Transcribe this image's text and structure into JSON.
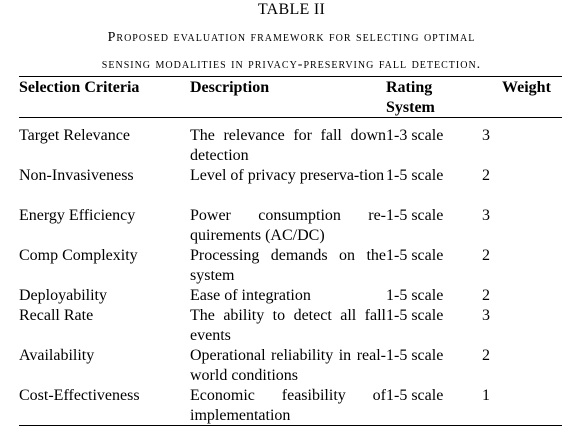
{
  "table_label": "TABLE II",
  "caption": {
    "line1": "Proposed evaluation framework for selecting optimal",
    "line2": "sensing modalities in privacy-preserving fall detection."
  },
  "headers": {
    "criteria": "Selection Criteria",
    "description": "Description",
    "rating": "Rating System",
    "weight": "Weight"
  },
  "rows": [
    {
      "criteria": "Target Relevance",
      "description": "The relevance for fall down detection",
      "rating": "1-3 scale",
      "weight": "3"
    },
    {
      "criteria": "Non-Invasiveness",
      "description": "Level of privacy preserva-tion",
      "rating": "1-5 scale",
      "weight": "2"
    },
    {
      "criteria": "Energy Efficiency",
      "description": "Power consumption re-quirements (AC/DC)",
      "rating": "1-5 scale",
      "weight": "3"
    },
    {
      "criteria": "Comp Complexity",
      "description": "Processing demands on the system",
      "rating": "1-5 scale",
      "weight": "2"
    },
    {
      "criteria": "Deployability",
      "description": "Ease of integration",
      "rating": "1-5 scale",
      "weight": "2"
    },
    {
      "criteria": "Recall Rate",
      "description": "The ability to detect all fall events",
      "rating": "1-5 scale",
      "weight": "3"
    },
    {
      "criteria": "Availability",
      "description": "Operational reliability in real-world conditions",
      "rating": "1-5 scale",
      "weight": "2"
    },
    {
      "criteria": "Cost-Effectiveness",
      "description": "Economic feasibility of implementation",
      "rating": "1-5 scale",
      "weight": "1"
    }
  ]
}
